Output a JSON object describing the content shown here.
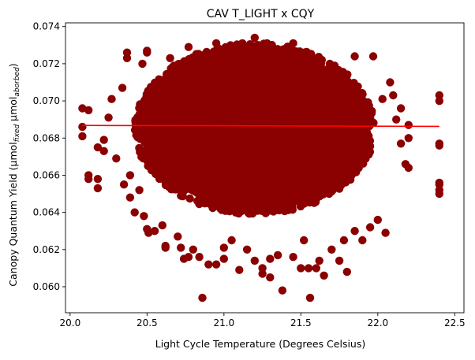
{
  "chart_data": {
    "type": "scatter",
    "title": "CAV T_LIGHT x CQY",
    "xlabel": "Light Cycle Temperature (Degrees Celsius)",
    "ylabel_parts": {
      "prefix": "Canopy Quantum Yield (µmol",
      "sub1": "fixed",
      "mid": " µmol",
      "sub2": "aborbed",
      "suffix": ")"
    },
    "xlim": [
      19.97,
      22.56
    ],
    "ylim": [
      0.0586,
      0.0742
    ],
    "x_ticks": [
      {
        "value": 20.0,
        "label": "20.0"
      },
      {
        "value": 20.5,
        "label": "20.5"
      },
      {
        "value": 21.0,
        "label": "21.0"
      },
      {
        "value": 21.5,
        "label": "21.5"
      },
      {
        "value": 22.0,
        "label": "22.0"
      },
      {
        "value": 22.5,
        "label": "22.5"
      }
    ],
    "y_ticks": [
      {
        "value": 0.06,
        "label": "0.060"
      },
      {
        "value": 0.062,
        "label": "0.062"
      },
      {
        "value": 0.064,
        "label": "0.064"
      },
      {
        "value": 0.066,
        "label": "0.066"
      },
      {
        "value": 0.068,
        "label": "0.068"
      },
      {
        "value": 0.07,
        "label": "0.070"
      },
      {
        "value": 0.072,
        "label": "0.072"
      },
      {
        "value": 0.074,
        "label": "0.074"
      }
    ],
    "grid": false,
    "point_color": "#8b0000",
    "trend_color": "#ff0000",
    "trend_line": {
      "x": [
        20.08,
        22.4
      ],
      "y": [
        0.06868,
        0.06863
      ]
    },
    "dense_cloud": {
      "x_center": 21.2,
      "x_halfwidth": 0.78,
      "y_center": 0.0685,
      "y_halfheight": 0.0046
    },
    "points": [
      [
        20.08,
        0.0696
      ],
      [
        20.08,
        0.0681
      ],
      [
        20.08,
        0.0686
      ],
      [
        20.12,
        0.0695
      ],
      [
        20.12,
        0.066
      ],
      [
        20.12,
        0.0658
      ],
      [
        20.18,
        0.0675
      ],
      [
        20.18,
        0.0658
      ],
      [
        20.18,
        0.0653
      ],
      [
        20.22,
        0.0679
      ],
      [
        20.22,
        0.0673
      ],
      [
        20.25,
        0.0691
      ],
      [
        20.27,
        0.0701
      ],
      [
        20.3,
        0.0669
      ],
      [
        20.34,
        0.0707
      ],
      [
        20.35,
        0.0655
      ],
      [
        20.37,
        0.0723
      ],
      [
        20.37,
        0.0726
      ],
      [
        20.39,
        0.066
      ],
      [
        20.39,
        0.0648
      ],
      [
        20.42,
        0.064
      ],
      [
        20.45,
        0.0652
      ],
      [
        20.47,
        0.072
      ],
      [
        20.48,
        0.0638
      ],
      [
        20.5,
        0.0726
      ],
      [
        20.5,
        0.0727
      ],
      [
        20.5,
        0.0631
      ],
      [
        20.51,
        0.0629
      ],
      [
        20.55,
        0.063
      ],
      [
        20.6,
        0.0633
      ],
      [
        20.62,
        0.0622
      ],
      [
        20.62,
        0.0621
      ],
      [
        20.65,
        0.0723
      ],
      [
        20.7,
        0.0627
      ],
      [
        20.72,
        0.0621
      ],
      [
        20.74,
        0.0615
      ],
      [
        20.77,
        0.0729
      ],
      [
        20.77,
        0.0616
      ],
      [
        20.8,
        0.062
      ],
      [
        20.84,
        0.0616
      ],
      [
        20.86,
        0.0594
      ],
      [
        20.9,
        0.0612
      ],
      [
        20.95,
        0.0612
      ],
      [
        20.95,
        0.0731
      ],
      [
        21.0,
        0.0621
      ],
      [
        21.0,
        0.0615
      ],
      [
        21.05,
        0.0625
      ],
      [
        21.1,
        0.0609
      ],
      [
        21.12,
        0.0731
      ],
      [
        21.15,
        0.062
      ],
      [
        21.2,
        0.0614
      ],
      [
        21.2,
        0.0734
      ],
      [
        21.25,
        0.0607
      ],
      [
        21.25,
        0.061
      ],
      [
        21.28,
        0.0731
      ],
      [
        21.3,
        0.0615
      ],
      [
        21.3,
        0.0605
      ],
      [
        21.35,
        0.0617
      ],
      [
        21.38,
        0.0598
      ],
      [
        21.45,
        0.0616
      ],
      [
        21.45,
        0.0731
      ],
      [
        21.5,
        0.061
      ],
      [
        21.52,
        0.0625
      ],
      [
        21.55,
        0.061
      ],
      [
        21.56,
        0.0594
      ],
      [
        21.6,
        0.061
      ],
      [
        21.62,
        0.0614
      ],
      [
        21.65,
        0.0606
      ],
      [
        21.7,
        0.062
      ],
      [
        21.75,
        0.0614
      ],
      [
        21.78,
        0.0625
      ],
      [
        21.8,
        0.0608
      ],
      [
        21.85,
        0.063
      ],
      [
        21.85,
        0.0724
      ],
      [
        21.9,
        0.0625
      ],
      [
        21.95,
        0.0632
      ],
      [
        21.97,
        0.0724
      ],
      [
        22.0,
        0.0636
      ],
      [
        22.03,
        0.0701
      ],
      [
        22.05,
        0.0629
      ],
      [
        22.08,
        0.071
      ],
      [
        22.1,
        0.0703
      ],
      [
        22.12,
        0.069
      ],
      [
        22.15,
        0.0677
      ],
      [
        22.15,
        0.0696
      ],
      [
        22.18,
        0.0666
      ],
      [
        22.2,
        0.068
      ],
      [
        22.2,
        0.0687
      ],
      [
        22.2,
        0.0664
      ],
      [
        22.4,
        0.07
      ],
      [
        22.4,
        0.0703
      ],
      [
        22.4,
        0.0676
      ],
      [
        22.4,
        0.0677
      ],
      [
        22.4,
        0.0656
      ],
      [
        22.4,
        0.0655
      ],
      [
        22.4,
        0.065
      ],
      [
        22.4,
        0.0652
      ]
    ]
  }
}
